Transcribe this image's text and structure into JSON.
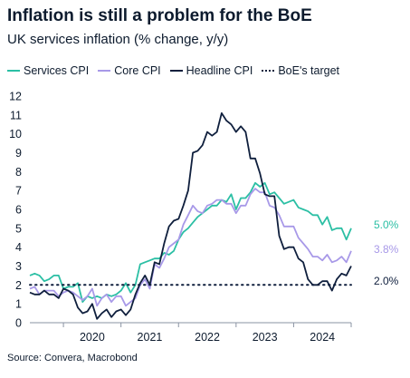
{
  "title": "Inflation is still a problem for the BoE",
  "subtitle": "UK services inflation (% change, y/y)",
  "source": "Source: Convera, Macrobond",
  "chart_data": {
    "type": "line",
    "title": "Inflation is still a problem for the BoE",
    "subtitle": "UK services inflation (% change, y/y)",
    "xlabel": "",
    "ylabel": "",
    "ylim": [
      0,
      12
    ],
    "yticks": [
      0,
      1,
      2,
      3,
      4,
      5,
      6,
      7,
      8,
      9,
      10,
      11,
      12
    ],
    "xlim": [
      "2019-06",
      "2024-11"
    ],
    "xtick_labels": [
      "2020",
      "2021",
      "2022",
      "2023",
      "2024"
    ],
    "grid": false,
    "legend_position": "top",
    "series": [
      {
        "name": "Services CPI",
        "color": "#2bbfa4",
        "end_label": "5.0%",
        "points": [
          [
            "2019-06",
            2.5
          ],
          [
            "2019-07",
            2.6
          ],
          [
            "2019-08",
            2.5
          ],
          [
            "2019-09",
            2.2
          ],
          [
            "2019-10",
            2.3
          ],
          [
            "2019-11",
            2.5
          ],
          [
            "2019-12",
            2.5
          ],
          [
            "2020-01",
            1.8
          ],
          [
            "2020-02",
            1.9
          ],
          [
            "2020-03",
            1.9
          ],
          [
            "2020-04",
            2.1
          ],
          [
            "2020-05",
            1.1
          ],
          [
            "2020-06",
            1.4
          ],
          [
            "2020-07",
            1.3
          ],
          [
            "2020-08",
            1.4
          ],
          [
            "2020-09",
            1.3
          ],
          [
            "2020-10",
            1.5
          ],
          [
            "2020-11",
            1.4
          ],
          [
            "2020-12",
            1.5
          ],
          [
            "2021-01",
            1.7
          ],
          [
            "2021-02",
            2.1
          ],
          [
            "2021-03",
            1.6
          ],
          [
            "2021-04",
            2.0
          ],
          [
            "2021-05",
            3.1
          ],
          [
            "2021-06",
            3.2
          ],
          [
            "2021-07",
            3.3
          ],
          [
            "2021-08",
            3.4
          ],
          [
            "2021-09",
            3.4
          ],
          [
            "2021-10",
            3.7
          ],
          [
            "2021-11",
            3.6
          ],
          [
            "2021-12",
            3.8
          ],
          [
            "2022-01",
            4.4
          ],
          [
            "2022-02",
            4.8
          ],
          [
            "2022-03",
            5.0
          ],
          [
            "2022-04",
            5.3
          ],
          [
            "2022-05",
            5.6
          ],
          [
            "2022-06",
            5.8
          ],
          [
            "2022-07",
            6.0
          ],
          [
            "2022-08",
            6.2
          ],
          [
            "2022-09",
            6.2
          ],
          [
            "2022-10",
            6.5
          ],
          [
            "2022-11",
            6.4
          ],
          [
            "2022-12",
            6.8
          ],
          [
            "2023-01",
            6.0
          ],
          [
            "2023-02",
            6.6
          ],
          [
            "2023-03",
            6.6
          ],
          [
            "2023-04",
            6.9
          ],
          [
            "2023-05",
            7.4
          ],
          [
            "2023-06",
            7.2
          ],
          [
            "2023-07",
            7.4
          ],
          [
            "2023-08",
            6.8
          ],
          [
            "2023-09",
            6.9
          ],
          [
            "2023-10",
            6.6
          ],
          [
            "2023-11",
            6.3
          ],
          [
            "2023-12",
            6.4
          ],
          [
            "2024-01",
            6.5
          ],
          [
            "2024-02",
            6.1
          ],
          [
            "2024-03",
            6.0
          ],
          [
            "2024-04",
            5.9
          ],
          [
            "2024-05",
            5.7
          ],
          [
            "2024-06",
            5.7
          ],
          [
            "2024-07",
            5.2
          ],
          [
            "2024-08",
            5.6
          ],
          [
            "2024-09",
            4.9
          ],
          [
            "2024-10",
            5.0
          ],
          [
            "2024-11",
            5.0
          ],
          [
            "2024-12",
            4.4
          ],
          [
            "2025-01",
            5.0
          ]
        ]
      },
      {
        "name": "Core CPI",
        "color": "#a899e8",
        "end_label": "3.8%",
        "points": [
          [
            "2019-06",
            1.8
          ],
          [
            "2019-07",
            1.9
          ],
          [
            "2019-08",
            1.5
          ],
          [
            "2019-09",
            1.7
          ],
          [
            "2019-10",
            1.7
          ],
          [
            "2019-11",
            1.7
          ],
          [
            "2019-12",
            1.4
          ],
          [
            "2020-01",
            1.6
          ],
          [
            "2020-02",
            1.7
          ],
          [
            "2020-03",
            1.6
          ],
          [
            "2020-04",
            1.4
          ],
          [
            "2020-05",
            1.2
          ],
          [
            "2020-06",
            1.4
          ],
          [
            "2020-07",
            1.8
          ],
          [
            "2020-08",
            0.9
          ],
          [
            "2020-09",
            1.3
          ],
          [
            "2020-10",
            1.5
          ],
          [
            "2020-11",
            1.1
          ],
          [
            "2020-12",
            1.4
          ],
          [
            "2021-01",
            1.4
          ],
          [
            "2021-02",
            0.9
          ],
          [
            "2021-03",
            1.1
          ],
          [
            "2021-04",
            1.3
          ],
          [
            "2021-05",
            2.0
          ],
          [
            "2021-06",
            2.3
          ],
          [
            "2021-07",
            1.8
          ],
          [
            "2021-08",
            3.1
          ],
          [
            "2021-09",
            2.9
          ],
          [
            "2021-10",
            3.4
          ],
          [
            "2021-11",
            4.0
          ],
          [
            "2021-12",
            4.2
          ],
          [
            "2022-01",
            4.4
          ],
          [
            "2022-02",
            5.2
          ],
          [
            "2022-03",
            5.7
          ],
          [
            "2022-04",
            6.2
          ],
          [
            "2022-05",
            5.9
          ],
          [
            "2022-06",
            5.8
          ],
          [
            "2022-07",
            6.2
          ],
          [
            "2022-08",
            6.3
          ],
          [
            "2022-09",
            6.5
          ],
          [
            "2022-10",
            6.5
          ],
          [
            "2022-11",
            6.3
          ],
          [
            "2022-12",
            6.3
          ],
          [
            "2023-01",
            5.8
          ],
          [
            "2023-02",
            6.2
          ],
          [
            "2023-03",
            6.2
          ],
          [
            "2023-04",
            6.8
          ],
          [
            "2023-05",
            7.1
          ],
          [
            "2023-06",
            6.9
          ],
          [
            "2023-07",
            6.9
          ],
          [
            "2023-08",
            6.2
          ],
          [
            "2023-09",
            6.1
          ],
          [
            "2023-10",
            5.7
          ],
          [
            "2023-11",
            5.1
          ],
          [
            "2023-12",
            5.1
          ],
          [
            "2024-01",
            5.1
          ],
          [
            "2024-02",
            4.5
          ],
          [
            "2024-03",
            4.2
          ],
          [
            "2024-04",
            3.9
          ],
          [
            "2024-05",
            3.5
          ],
          [
            "2024-06",
            3.5
          ],
          [
            "2024-07",
            3.3
          ],
          [
            "2024-08",
            3.6
          ],
          [
            "2024-09",
            3.2
          ],
          [
            "2024-10",
            3.3
          ],
          [
            "2024-11",
            3.5
          ],
          [
            "2024-12",
            3.2
          ],
          [
            "2025-01",
            3.8
          ]
        ]
      },
      {
        "name": "Headline CPI",
        "color": "#0f1f3d",
        "end_label": "",
        "points": [
          [
            "2019-06",
            1.6
          ],
          [
            "2019-07",
            1.5
          ],
          [
            "2019-08",
            1.5
          ],
          [
            "2019-09",
            1.7
          ],
          [
            "2019-10",
            1.5
          ],
          [
            "2019-11",
            1.5
          ],
          [
            "2019-12",
            1.3
          ],
          [
            "2020-01",
            1.8
          ],
          [
            "2020-02",
            1.7
          ],
          [
            "2020-03",
            1.5
          ],
          [
            "2020-04",
            0.8
          ],
          [
            "2020-05",
            0.5
          ],
          [
            "2020-06",
            0.6
          ],
          [
            "2020-07",
            1.0
          ],
          [
            "2020-08",
            0.2
          ],
          [
            "2020-09",
            0.5
          ],
          [
            "2020-10",
            0.7
          ],
          [
            "2020-11",
            0.3
          ],
          [
            "2020-12",
            0.6
          ],
          [
            "2021-01",
            0.7
          ],
          [
            "2021-02",
            0.4
          ],
          [
            "2021-03",
            0.7
          ],
          [
            "2021-04",
            1.5
          ],
          [
            "2021-05",
            2.1
          ],
          [
            "2021-06",
            2.5
          ],
          [
            "2021-07",
            2.0
          ],
          [
            "2021-08",
            3.2
          ],
          [
            "2021-09",
            3.1
          ],
          [
            "2021-10",
            4.2
          ],
          [
            "2021-11",
            5.1
          ],
          [
            "2021-12",
            5.4
          ],
          [
            "2022-01",
            5.5
          ],
          [
            "2022-02",
            6.2
          ],
          [
            "2022-03",
            7.0
          ],
          [
            "2022-04",
            9.0
          ],
          [
            "2022-05",
            9.1
          ],
          [
            "2022-06",
            9.4
          ],
          [
            "2022-07",
            10.1
          ],
          [
            "2022-08",
            9.9
          ],
          [
            "2022-09",
            10.1
          ],
          [
            "2022-10",
            11.1
          ],
          [
            "2022-11",
            10.7
          ],
          [
            "2022-12",
            10.5
          ],
          [
            "2023-01",
            10.1
          ],
          [
            "2023-02",
            10.4
          ],
          [
            "2023-03",
            10.1
          ],
          [
            "2023-04",
            8.7
          ],
          [
            "2023-05",
            8.7
          ],
          [
            "2023-06",
            7.9
          ],
          [
            "2023-07",
            6.8
          ],
          [
            "2023-08",
            6.7
          ],
          [
            "2023-09",
            6.7
          ],
          [
            "2023-10",
            4.6
          ],
          [
            "2023-11",
            3.9
          ],
          [
            "2023-12",
            4.0
          ],
          [
            "2024-01",
            4.0
          ],
          [
            "2024-02",
            3.4
          ],
          [
            "2024-03",
            3.2
          ],
          [
            "2024-04",
            2.3
          ],
          [
            "2024-05",
            2.0
          ],
          [
            "2024-06",
            2.0
          ],
          [
            "2024-07",
            2.2
          ],
          [
            "2024-08",
            2.2
          ],
          [
            "2024-09",
            1.7
          ],
          [
            "2024-10",
            2.3
          ],
          [
            "2024-11",
            2.6
          ],
          [
            "2024-12",
            2.5
          ],
          [
            "2025-01",
            3.0
          ]
        ]
      },
      {
        "name": "BoE's target",
        "color": "#0f1f3d",
        "style": "dotted",
        "end_label": "2.0%",
        "points": [
          [
            "2019-06",
            2.0
          ],
          [
            "2025-01",
            2.0
          ]
        ]
      }
    ]
  }
}
